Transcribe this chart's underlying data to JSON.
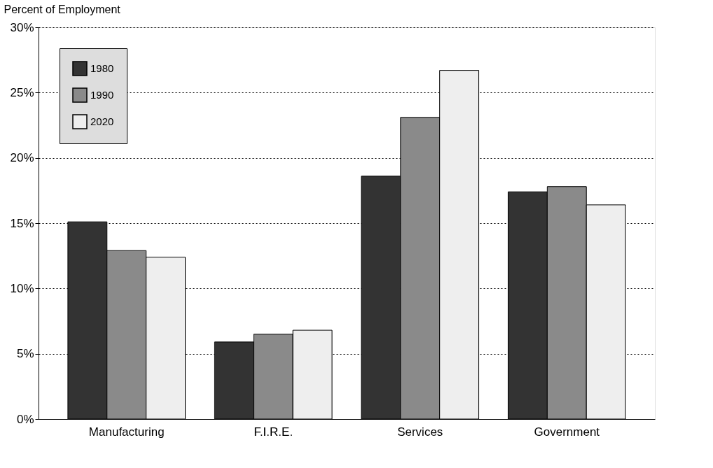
{
  "chart_data": {
    "type": "bar",
    "ylabel": "Percent of Employment",
    "categories": [
      "Manufacturing",
      "F.I.R.E.",
      "Services",
      "Government"
    ],
    "series": [
      {
        "name": "1980",
        "color": "#333333",
        "values": [
          15.1,
          5.9,
          18.6,
          17.4
        ]
      },
      {
        "name": "1990",
        "color": "#8a8a8a",
        "values": [
          12.9,
          6.5,
          23.1,
          17.8
        ]
      },
      {
        "name": "2020",
        "color": "#eeeeee",
        "values": [
          12.4,
          6.8,
          26.7,
          16.4
        ]
      }
    ],
    "ylim": [
      0,
      30
    ],
    "yticks": [
      {
        "value": 0,
        "label": "0%"
      },
      {
        "value": 5,
        "label": "5%"
      },
      {
        "value": 10,
        "label": "10%"
      },
      {
        "value": 15,
        "label": "15%"
      },
      {
        "value": 20,
        "label": "20%"
      },
      {
        "value": 25,
        "label": "25%"
      },
      {
        "value": 30,
        "label": "30%"
      }
    ],
    "grid": "y",
    "legend": "top left"
  }
}
